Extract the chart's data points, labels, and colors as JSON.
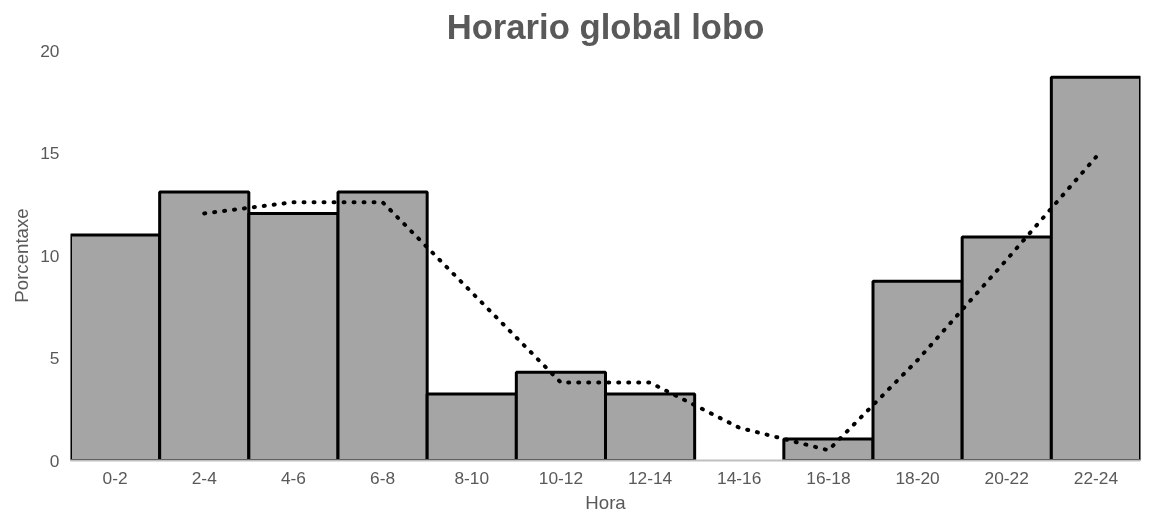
{
  "chart_data": {
    "type": "bar",
    "title": "Horario global lobo",
    "xlabel": "Hora",
    "ylabel": "Porcentaxe",
    "categories": [
      "0-2",
      "2-4",
      "4-6",
      "6-8",
      "8-10",
      "10-12",
      "12-14",
      "14-16",
      "16-18",
      "18-20",
      "20-22",
      "22-24"
    ],
    "series": [
      {
        "color": "#a5a5a5",
        "values": [
          11.0,
          13.1,
          12.05,
          13.1,
          3.25,
          4.3,
          3.25,
          0,
          1.05,
          8.75,
          10.9,
          18.7
        ]
      },
      {
        "type": "line",
        "color": "#000000",
        "line_style": "dotted",
        "values": [
          null,
          12.05,
          12.6,
          12.6,
          8.2,
          3.8,
          3.8,
          1.6,
          0.5,
          4.9,
          9.8,
          14.8
        ]
      }
    ],
    "ylim": [
      0,
      20
    ],
    "yticks": [
      0,
      5,
      10,
      15,
      20
    ],
    "grid": false
  }
}
